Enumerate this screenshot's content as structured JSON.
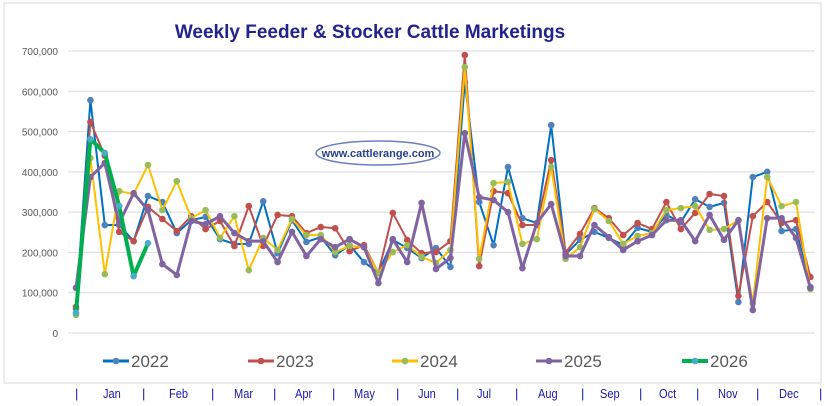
{
  "chart_data": {
    "type": "line",
    "title": "Weekly Feeder & Stocker Cattle Marketings",
    "watermark": "www.cattlerange.com",
    "xlabel": "",
    "ylabel": "",
    "ylim": [
      0,
      700000
    ],
    "yticks": [
      "0",
      "100,000",
      "200,000",
      "300,000",
      "400,000",
      "500,000",
      "600,000",
      "700,000"
    ],
    "grid": true,
    "legend_position": "bottom",
    "months": [
      "Jan",
      "Feb",
      "Mar",
      "Apr",
      "May",
      "Jun",
      "Jul",
      "Aug",
      "Sep",
      "Oct",
      "Nov",
      "Dec"
    ],
    "x_unit": "week",
    "series": [
      {
        "name": "2022",
        "color": "#0070c0",
        "marker": "#4f81bd",
        "values": [
          60000,
          578000,
          268000,
          268000,
          228000,
          340000,
          325000,
          248000,
          280000,
          288000,
          233000,
          221000,
          221000,
          327000,
          198000,
          280000,
          226000,
          238000,
          193000,
          218000,
          176000,
          149000,
          231000,
          211000,
          186000,
          211000,
          164000,
          623000,
          325000,
          218000,
          412000,
          285000,
          273000,
          516000,
          195000,
          231000,
          251000,
          236000,
          218000,
          261000,
          251000,
          293000,
          275000,
          332000,
          313000,
          323000,
          77000,
          387000,
          400000,
          253000,
          258000,
          114000
        ]
      },
      {
        "name": "2023",
        "color": "#c0504d",
        "marker": "#c0504d",
        "values": [
          65000,
          524000,
          440000,
          251000,
          228000,
          313000,
          283000,
          253000,
          290000,
          258000,
          278000,
          216000,
          315000,
          216000,
          293000,
          290000,
          248000,
          263000,
          260000,
          203000,
          218000,
          149000,
          298000,
          231000,
          198000,
          201000,
          228000,
          690000,
          166000,
          352000,
          347000,
          268000,
          268000,
          429000,
          200000,
          246000,
          310000,
          285000,
          243000,
          273000,
          258000,
          325000,
          258000,
          298000,
          345000,
          340000,
          92000,
          290000,
          325000,
          273000,
          280000,
          139000
        ]
      },
      {
        "name": "2024",
        "color": "#ffc000",
        "marker": "#9bbb59",
        "values": [
          45000,
          434000,
          146000,
          352000,
          345000,
          417000,
          305000,
          377000,
          285000,
          305000,
          236000,
          290000,
          156000,
          236000,
          206000,
          283000,
          243000,
          243000,
          201000,
          216000,
          213000,
          149000,
          201000,
          218000,
          189000,
          174000,
          206000,
          660000,
          184000,
          372000,
          375000,
          221000,
          233000,
          412000,
          184000,
          213000,
          308000,
          278000,
          221000,
          241000,
          248000,
          305000,
          310000,
          315000,
          256000,
          258000,
          280000,
          74000,
          387000,
          315000,
          325000,
          109000
        ]
      },
      {
        "name": "2025",
        "color": "#8064a2",
        "marker": "#8064a2",
        "values": [
          112000,
          387000,
          422000,
          273000,
          347000,
          305000,
          171000,
          144000,
          278000,
          270000,
          290000,
          248000,
          228000,
          228000,
          176000,
          251000,
          191000,
          233000,
          213000,
          233000,
          213000,
          124000,
          233000,
          176000,
          323000,
          159000,
          186000,
          496000,
          337000,
          330000,
          300000,
          161000,
          273000,
          320000,
          191000,
          191000,
          268000,
          238000,
          206000,
          228000,
          243000,
          280000,
          280000,
          228000,
          293000,
          231000,
          280000,
          57000,
          285000,
          285000,
          236000,
          112000
        ]
      },
      {
        "name": "2026",
        "color": "#00b050",
        "marker": "#4bacc6",
        "values": [
          50000,
          481000,
          447000,
          315000,
          141000,
          223000
        ]
      }
    ]
  }
}
